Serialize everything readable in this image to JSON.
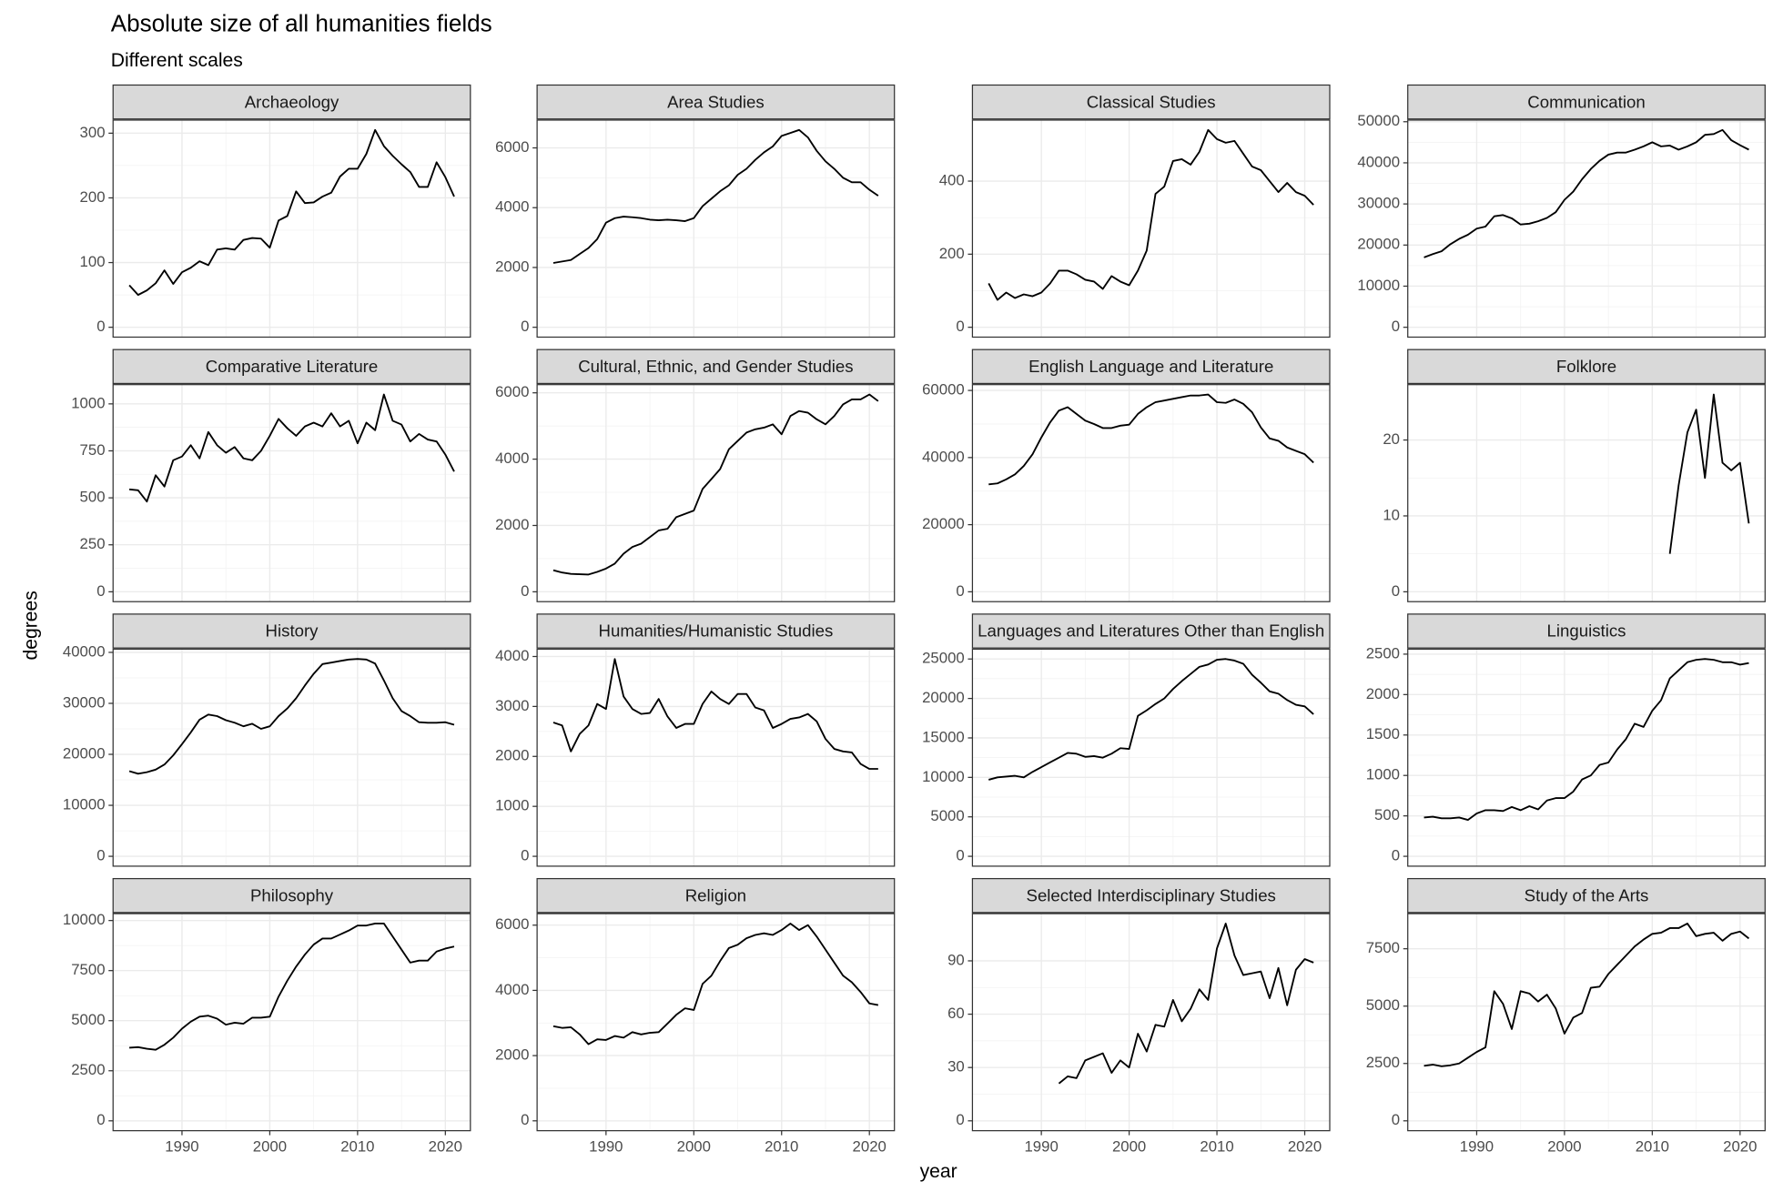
{
  "chart_data": {
    "type": "facet",
    "title": "Absolute size of all humanities fields",
    "subtitle": "Different scales",
    "x_label": "year",
    "y_label": "degrees",
    "grid": true,
    "x": [
      1984,
      1985,
      1986,
      1987,
      1988,
      1989,
      1990,
      1991,
      1992,
      1993,
      1994,
      1995,
      1996,
      1997,
      1998,
      1999,
      2000,
      2001,
      2002,
      2003,
      2004,
      2005,
      2006,
      2007,
      2008,
      2009,
      2010,
      2011,
      2012,
      2013,
      2014,
      2015,
      2016,
      2017,
      2018,
      2019,
      2020,
      2021
    ],
    "xlim": [
      1982.15,
      2022.85
    ],
    "xticks": [
      1990,
      2000,
      2010,
      2020
    ],
    "panels": [
      {
        "title": "Archaeology",
        "type": "line",
        "color": "#000000",
        "ylim": [
          -15.25,
          320.25
        ],
        "yticks": [
          0,
          100,
          200,
          300
        ],
        "values": [
          65,
          50,
          57,
          68,
          88,
          67,
          85,
          92,
          102,
          96,
          120,
          122,
          120,
          135,
          138,
          137,
          123,
          165,
          172,
          210,
          192,
          193,
          202,
          208,
          233,
          245,
          245,
          268,
          305,
          280,
          265,
          252,
          240,
          217,
          217,
          255,
          232,
          202
        ]
      },
      {
        "title": "Area Studies",
        "type": "line",
        "color": "#000000",
        "ylim": [
          -330,
          6930
        ],
        "yticks": [
          0,
          2000,
          4000,
          6000
        ],
        "values": [
          2150,
          2200,
          2250,
          2450,
          2650,
          2950,
          3500,
          3650,
          3700,
          3680,
          3650,
          3600,
          3580,
          3600,
          3580,
          3550,
          3650,
          4050,
          4300,
          4550,
          4750,
          5100,
          5300,
          5600,
          5850,
          6050,
          6400,
          6500,
          6600,
          6350,
          5900,
          5550,
          5300,
          5000,
          4850,
          4850,
          4600,
          4400
        ]
      },
      {
        "title": "Classical Studies",
        "type": "line",
        "color": "#000000",
        "ylim": [
          -27,
          567
        ],
        "yticks": [
          0,
          200,
          400
        ],
        "values": [
          120,
          75,
          95,
          80,
          90,
          85,
          95,
          120,
          155,
          155,
          145,
          130,
          125,
          105,
          140,
          125,
          115,
          155,
          210,
          365,
          385,
          455,
          460,
          445,
          480,
          540,
          515,
          505,
          510,
          475,
          440,
          430,
          400,
          370,
          395,
          370,
          360,
          335
        ]
      },
      {
        "title": "Communication",
        "type": "line",
        "color": "#000000",
        "ylim": [
          -2400,
          50400
        ],
        "yticks": [
          0,
          10000,
          20000,
          30000,
          40000,
          50000
        ],
        "values": [
          17000,
          17800,
          18500,
          20200,
          21500,
          22500,
          24000,
          24500,
          27000,
          27300,
          26500,
          25000,
          25200,
          25800,
          26600,
          28000,
          31000,
          33000,
          36000,
          38500,
          40500,
          42000,
          42500,
          42500,
          43200,
          44000,
          45000,
          44000,
          44200,
          43200,
          44000,
          45000,
          46800,
          47000,
          48000,
          45500,
          44300,
          43200
        ]
      },
      {
        "title": "Comparative Literature",
        "type": "line",
        "color": "#000000",
        "ylim": [
          -52.5,
          1102.5
        ],
        "yticks": [
          0,
          250,
          500,
          750,
          1000
        ],
        "values": [
          545,
          540,
          480,
          620,
          560,
          700,
          720,
          780,
          710,
          850,
          780,
          740,
          770,
          710,
          700,
          750,
          830,
          920,
          870,
          830,
          880,
          900,
          880,
          950,
          880,
          910,
          790,
          900,
          860,
          1050,
          910,
          890,
          800,
          840,
          810,
          800,
          730,
          640
        ]
      },
      {
        "title": "Cultural, Ethnic, and Gender Studies",
        "type": "line",
        "color": "#000000",
        "ylim": [
          -297.5,
          6247.5
        ],
        "yticks": [
          0,
          2000,
          4000,
          6000
        ],
        "values": [
          650,
          580,
          540,
          530,
          520,
          600,
          700,
          850,
          1150,
          1350,
          1450,
          1650,
          1850,
          1900,
          2250,
          2350,
          2450,
          3100,
          3400,
          3700,
          4300,
          4550,
          4800,
          4900,
          4950,
          5050,
          4750,
          5300,
          5450,
          5400,
          5200,
          5050,
          5300,
          5650,
          5800,
          5800,
          5950,
          5750
        ]
      },
      {
        "title": "English Language and Literature",
        "type": "line",
        "color": "#000000",
        "ylim": [
          -2940,
          61740
        ],
        "yticks": [
          0,
          20000,
          40000,
          60000
        ],
        "values": [
          32000,
          32300,
          33500,
          35000,
          37500,
          41000,
          46000,
          50500,
          54000,
          55000,
          53000,
          51000,
          50000,
          48800,
          48800,
          49500,
          49800,
          53000,
          55000,
          56500,
          57000,
          57500,
          58000,
          58500,
          58500,
          58800,
          56500,
          56300,
          57300,
          56000,
          53500,
          49000,
          45700,
          45000,
          43000,
          42000,
          41000,
          38500
        ]
      },
      {
        "title": "Folklore",
        "type": "line",
        "color": "#000000",
        "ylim": [
          -1.3,
          27.3
        ],
        "yticks": [
          0,
          10,
          20
        ],
        "values": [
          null,
          null,
          null,
          null,
          null,
          null,
          null,
          null,
          null,
          null,
          null,
          null,
          null,
          null,
          null,
          null,
          null,
          null,
          null,
          null,
          null,
          null,
          null,
          null,
          null,
          null,
          null,
          null,
          5,
          14,
          21,
          24,
          15,
          26,
          17,
          16,
          17,
          9
        ]
      },
      {
        "title": "History",
        "type": "line",
        "color": "#000000",
        "ylim": [
          -1935,
          40635
        ],
        "yticks": [
          0,
          10000,
          20000,
          30000,
          40000
        ],
        "values": [
          16700,
          16200,
          16500,
          17000,
          18000,
          19800,
          22000,
          24300,
          26800,
          27800,
          27500,
          26700,
          26200,
          25500,
          26000,
          25000,
          25500,
          27500,
          29000,
          31000,
          33500,
          35800,
          37700,
          38000,
          38300,
          38600,
          38700,
          38600,
          37800,
          34500,
          31000,
          28500,
          27500,
          26300,
          26200,
          26200,
          26300,
          25800
        ]
      },
      {
        "title": "Humanities/Humanistic Studies",
        "type": "line",
        "color": "#000000",
        "ylim": [
          -197.5,
          4147.5
        ],
        "yticks": [
          0,
          1000,
          2000,
          3000,
          4000
        ],
        "values": [
          2680,
          2620,
          2100,
          2450,
          2620,
          3050,
          2950,
          3950,
          3200,
          2950,
          2850,
          2870,
          3150,
          2800,
          2570,
          2650,
          2650,
          3050,
          3300,
          3150,
          3050,
          3250,
          3250,
          2980,
          2920,
          2570,
          2650,
          2750,
          2780,
          2850,
          2700,
          2350,
          2150,
          2100,
          2080,
          1850,
          1750,
          1750
        ]
      },
      {
        "title": "Languages and Literatures Other than English",
        "type": "line",
        "color": "#000000",
        "ylim": [
          -1250,
          26250
        ],
        "yticks": [
          0,
          5000,
          10000,
          15000,
          20000,
          25000
        ],
        "values": [
          9700,
          10000,
          10100,
          10200,
          10000,
          10700,
          11300,
          11900,
          12500,
          13100,
          13000,
          12600,
          12700,
          12500,
          13000,
          13700,
          13600,
          17800,
          18500,
          19300,
          20000,
          21200,
          22200,
          23100,
          24000,
          24300,
          24900,
          25000,
          24800,
          24400,
          23000,
          22000,
          20900,
          20600,
          19800,
          19200,
          19000,
          18000
        ]
      },
      {
        "title": "Linguistics",
        "type": "line",
        "color": "#000000",
        "ylim": [
          -122,
          2562
        ],
        "yticks": [
          0,
          500,
          1000,
          1500,
          2000,
          2500
        ],
        "values": [
          480,
          490,
          470,
          470,
          480,
          450,
          530,
          570,
          570,
          560,
          610,
          570,
          620,
          580,
          690,
          720,
          720,
          800,
          950,
          1000,
          1130,
          1160,
          1320,
          1450,
          1640,
          1600,
          1800,
          1930,
          2200,
          2300,
          2400,
          2430,
          2440,
          2430,
          2400,
          2400,
          2370,
          2390
        ]
      },
      {
        "title": "Philosophy",
        "type": "line",
        "color": "#000000",
        "ylim": [
          -492.5,
          10342.5
        ],
        "yticks": [
          0,
          2500,
          5000,
          7500,
          10000
        ],
        "values": [
          3650,
          3680,
          3600,
          3550,
          3800,
          4150,
          4600,
          4950,
          5200,
          5250,
          5100,
          4800,
          4900,
          4850,
          5150,
          5150,
          5200,
          6200,
          7000,
          7700,
          8300,
          8800,
          9100,
          9100,
          9300,
          9500,
          9750,
          9750,
          9850,
          9850,
          9200,
          8550,
          7900,
          8000,
          8000,
          8450,
          8600,
          8700
        ]
      },
      {
        "title": "Religion",
        "type": "line",
        "color": "#000000",
        "ylim": [
          -302.5,
          6352.5
        ],
        "yticks": [
          0,
          2000,
          4000,
          6000
        ],
        "values": [
          2900,
          2850,
          2870,
          2650,
          2350,
          2500,
          2480,
          2600,
          2550,
          2720,
          2650,
          2700,
          2720,
          2980,
          3250,
          3450,
          3400,
          4200,
          4450,
          4900,
          5300,
          5400,
          5600,
          5700,
          5750,
          5700,
          5850,
          6050,
          5850,
          6000,
          5650,
          5250,
          4850,
          4450,
          4250,
          3950,
          3600,
          3550
        ]
      },
      {
        "title": "Selected Interdisciplinary Studies",
        "type": "line",
        "color": "#000000",
        "ylim": [
          -5.55,
          116.55
        ],
        "yticks": [
          0,
          30,
          60,
          90
        ],
        "values": [
          null,
          null,
          null,
          null,
          null,
          null,
          null,
          null,
          21,
          25,
          24,
          34,
          36,
          38,
          27,
          34,
          30,
          49,
          39,
          54,
          53,
          68,
          56,
          63,
          74,
          68,
          97,
          111,
          93,
          82,
          83,
          84,
          69,
          86,
          65,
          85,
          91,
          89
        ]
      },
      {
        "title": "Study of the Arts",
        "type": "line",
        "color": "#000000",
        "ylim": [
          -430,
          9030
        ],
        "yticks": [
          0,
          2500,
          5000,
          7500
        ],
        "values": [
          2400,
          2450,
          2380,
          2420,
          2500,
          2750,
          3000,
          3200,
          5650,
          5100,
          4000,
          5650,
          5550,
          5200,
          5500,
          4900,
          3800,
          4500,
          4700,
          5800,
          5850,
          6400,
          6800,
          7200,
          7600,
          7900,
          8150,
          8200,
          8400,
          8400,
          8600,
          8050,
          8150,
          8200,
          7850,
          8150,
          8250,
          7950
        ]
      }
    ]
  }
}
